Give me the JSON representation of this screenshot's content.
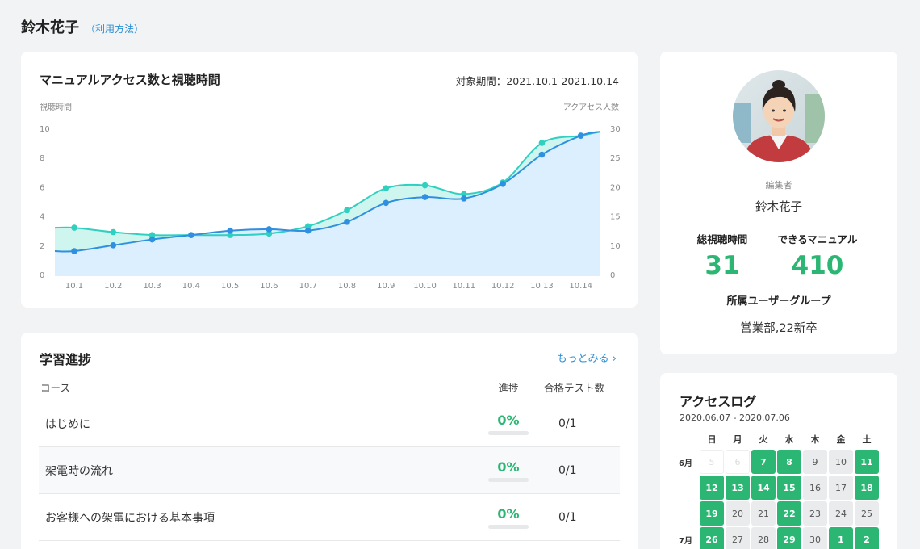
{
  "header": {
    "user_name": "鈴木花子",
    "help_link": "（利用方法）"
  },
  "access_chart": {
    "title": "マニュアルアクセス数と視聴時間",
    "period": "対象期間：2021.10.1-2021.10.14"
  },
  "chart_data": {
    "type": "line",
    "categories": [
      "10.1",
      "10.2",
      "10.3",
      "10.4",
      "10.5",
      "10.6",
      "10.7",
      "10.8",
      "10.9",
      "10.10",
      "10.11",
      "10.12",
      "10.13",
      "10.14"
    ],
    "ylabel_left": "視聴時間",
    "ylabel_right": "アクアセス人数",
    "ylim_left": [
      0,
      10
    ],
    "ylim_right": [
      0,
      30
    ],
    "yticks_left": [
      0,
      2,
      4,
      6,
      8,
      10
    ],
    "yticks_right": [
      0,
      10,
      15,
      20,
      25,
      30
    ],
    "series": [
      {
        "axis": "left",
        "color": "#2f8fe0",
        "fill": "#dcefff",
        "values": [
          1.6,
          2.0,
          2.4,
          2.7,
          3.0,
          3.1,
          3.0,
          3.6,
          4.9,
          5.3,
          5.2,
          6.2,
          8.2,
          9.5
        ]
      },
      {
        "axis": "left",
        "color": "#2fd0c0",
        "fill": "#cff5ef",
        "values": [
          3.2,
          2.9,
          2.7,
          2.7,
          2.7,
          2.8,
          3.3,
          4.4,
          5.9,
          6.1,
          5.5,
          6.3,
          9.0,
          9.5
        ]
      }
    ],
    "grid": false
  },
  "progress": {
    "title": "学習進捗",
    "more_label": "もっとみる",
    "columns": [
      "コース",
      "進捗",
      "合格テスト数"
    ],
    "rows": [
      {
        "course": "はじめに",
        "progress": "0%",
        "tests": "0/1"
      },
      {
        "course": "架電時の流れ",
        "progress": "0%",
        "tests": "0/1"
      },
      {
        "course": "お客様への架電における基本事項",
        "progress": "0%",
        "tests": "0/1"
      }
    ]
  },
  "profile": {
    "role": "編集者",
    "name": "鈴木花子",
    "stats": [
      {
        "label": "総視聴時間",
        "value": "31"
      },
      {
        "label": "できるマニュアル",
        "value": "410"
      }
    ],
    "group_label": "所属ユーザーグループ",
    "group_value": "営業部,22新卒"
  },
  "access_log": {
    "title": "アクセスログ",
    "range": "2020.06.07 - 2020.07.06",
    "weekdays": [
      "日",
      "月",
      "火",
      "水",
      "木",
      "金",
      "土"
    ],
    "weeks": [
      {
        "month": "6月",
        "days": [
          {
            "d": "5",
            "s": "na"
          },
          {
            "d": "6",
            "s": "na"
          },
          {
            "d": "7",
            "s": "on"
          },
          {
            "d": "8",
            "s": "on"
          },
          {
            "d": "9",
            "s": "off"
          },
          {
            "d": "10",
            "s": "off"
          },
          {
            "d": "11",
            "s": "on"
          }
        ]
      },
      {
        "month": "",
        "days": [
          {
            "d": "12",
            "s": "on"
          },
          {
            "d": "13",
            "s": "on"
          },
          {
            "d": "14",
            "s": "on"
          },
          {
            "d": "15",
            "s": "on"
          },
          {
            "d": "16",
            "s": "off"
          },
          {
            "d": "17",
            "s": "off"
          },
          {
            "d": "18",
            "s": "on"
          }
        ]
      },
      {
        "month": "",
        "days": [
          {
            "d": "19",
            "s": "on"
          },
          {
            "d": "20",
            "s": "off"
          },
          {
            "d": "21",
            "s": "off"
          },
          {
            "d": "22",
            "s": "on"
          },
          {
            "d": "23",
            "s": "off"
          },
          {
            "d": "24",
            "s": "off"
          },
          {
            "d": "25",
            "s": "off"
          }
        ]
      },
      {
        "month": "7月",
        "days": [
          {
            "d": "26",
            "s": "on"
          },
          {
            "d": "27",
            "s": "off"
          },
          {
            "d": "28",
            "s": "off"
          },
          {
            "d": "29",
            "s": "on"
          },
          {
            "d": "30",
            "s": "off"
          },
          {
            "d": "1",
            "s": "on"
          },
          {
            "d": "2",
            "s": "on"
          }
        ]
      }
    ]
  }
}
